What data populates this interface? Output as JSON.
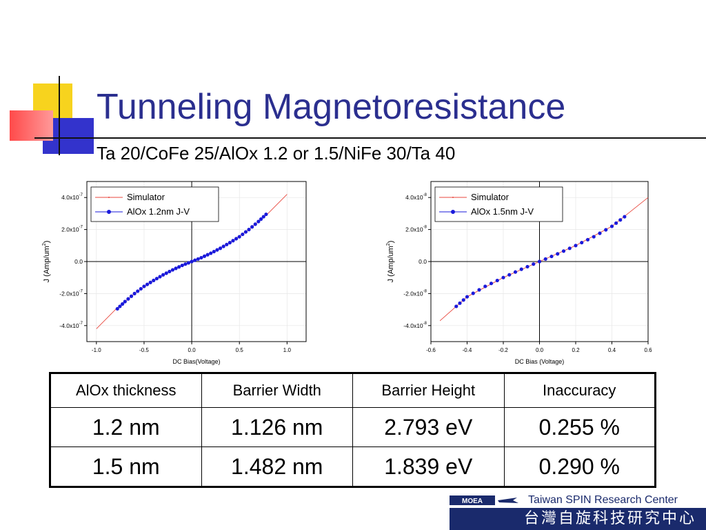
{
  "slide": {
    "title": "Tunneling Magnetoresistance",
    "subtitle": "Ta 20/CoFe 25/AlOx 1.2 or 1.5/NiFe 30/Ta 40"
  },
  "chart_data": [
    {
      "type": "line",
      "xlabel": "DC Bias(Voltage)",
      "ylabel": "J (Amp/um2)",
      "xlim": [
        -1.1,
        1.2
      ],
      "ylim": [
        -5e-07,
        5e-07
      ],
      "xticks": [
        -1.0,
        -0.5,
        0.0,
        0.5,
        1.0
      ],
      "xtick_labels": [
        "-1.0",
        "-0.5",
        "0.0",
        "0.5",
        "1.0"
      ],
      "yticks": [
        4e-07,
        2e-07,
        0,
        -2e-07,
        -4e-07
      ],
      "ytick_labels": [
        {
          "base": "4.0x10",
          "exp": "-7"
        },
        {
          "base": "2.0x10",
          "exp": "-7"
        },
        {
          "base": "0.0",
          "exp": ""
        },
        {
          "base": "-2.0x10",
          "exp": "-7"
        },
        {
          "base": "-4.0x10",
          "exp": "-7"
        }
      ],
      "legend": {
        "position": "top-left",
        "entries": [
          "Simulator",
          "AlOx 1.2nm J-V"
        ]
      },
      "series": [
        {
          "name": "Simulator",
          "style": "line",
          "color": "#e8463c",
          "x": [
            -1.0,
            -0.8,
            -0.6,
            -0.4,
            -0.2,
            0.0,
            0.2,
            0.4,
            0.6,
            0.8,
            1.0
          ],
          "y": [
            -4.2e-07,
            -3e-07,
            -2e-07,
            -1.18e-07,
            -5.2e-08,
            0,
            5.2e-08,
            1.18e-07,
            2e-07,
            3e-07,
            4.2e-07
          ]
        },
        {
          "name": "AlOx 1.2nm J-V",
          "style": "markers",
          "color": "#1a1adb",
          "x": [
            -0.78,
            -0.7,
            -0.6,
            -0.5,
            -0.4,
            -0.3,
            -0.2,
            -0.1,
            0.0,
            0.1,
            0.2,
            0.3,
            0.4,
            0.5,
            0.6,
            0.7,
            0.78
          ],
          "y": [
            -2.95e-07,
            -2.5e-07,
            -2e-07,
            -1.55e-07,
            -1.18e-07,
            -8.3e-08,
            -5.2e-08,
            -2.4e-08,
            0,
            2.4e-08,
            5.2e-08,
            8.3e-08,
            1.18e-07,
            1.55e-07,
            2e-07,
            2.5e-07,
            2.95e-07
          ]
        }
      ]
    },
    {
      "type": "line",
      "xlabel": "DC Bias (Voltage)",
      "ylabel": "J (Amp/um2)",
      "xlim": [
        -0.6,
        0.6
      ],
      "ylim": [
        -5e-08,
        5e-08
      ],
      "xticks": [
        -0.6,
        -0.4,
        -0.2,
        0.0,
        0.2,
        0.4,
        0.6
      ],
      "xtick_labels": [
        "-0.6",
        "-0.4",
        "-0.2",
        "0.0",
        "0.2",
        "0.4",
        "0.6"
      ],
      "yticks": [
        4e-08,
        2e-08,
        0,
        -2e-08,
        -4e-08
      ],
      "ytick_labels": [
        {
          "base": "4.0x10",
          "exp": "-8"
        },
        {
          "base": "2.0x10",
          "exp": "-8"
        },
        {
          "base": "0.0",
          "exp": ""
        },
        {
          "base": "-2.0x10",
          "exp": "-8"
        },
        {
          "base": "-4.0x10",
          "exp": "-8"
        }
      ],
      "legend": {
        "position": "top-left",
        "entries": [
          "Simulator",
          "AlOx 1.5nm J-V"
        ]
      },
      "series": [
        {
          "name": "Simulator",
          "style": "line",
          "color": "#e8463c",
          "x": [
            -0.55,
            -0.4,
            -0.2,
            0.0,
            0.2,
            0.4,
            0.6
          ],
          "y": [
            -3.7e-08,
            -2.2e-08,
            -1e-08,
            0,
            1e-08,
            2.2e-08,
            4e-08
          ]
        },
        {
          "name": "AlOx 1.5nm J-V",
          "style": "markers",
          "color": "#1a1adb",
          "x": [
            -0.46,
            -0.4,
            -0.3,
            -0.2,
            -0.1,
            0.0,
            0.1,
            0.2,
            0.3,
            0.4,
            0.47
          ],
          "y": [
            -2.8e-08,
            -2.2e-08,
            -1.55e-08,
            -1e-08,
            -4.8e-09,
            0,
            4.8e-09,
            1e-08,
            1.55e-08,
            2.2e-08,
            2.8e-08
          ]
        }
      ]
    }
  ],
  "table": {
    "headers": [
      "AlOx thickness",
      "Barrier Width",
      "Barrier Height",
      "Inaccuracy"
    ],
    "rows": [
      [
        "1.2 nm",
        "1.126 nm",
        "2.793 eV",
        "0.255 %"
      ],
      [
        "1.5 nm",
        "1.482 nm",
        "1.839 eV",
        "0.290 %"
      ]
    ]
  },
  "footer": {
    "logo_text": "MOEA",
    "center_name": "Taiwan SPIN Research Center",
    "chinese_name": "台灣自旋科技研究中心"
  },
  "colors": {
    "title": "#2b2f8f",
    "simulator": "#e8463c",
    "data": "#1a1adb",
    "footer": "#1a2a6c"
  }
}
